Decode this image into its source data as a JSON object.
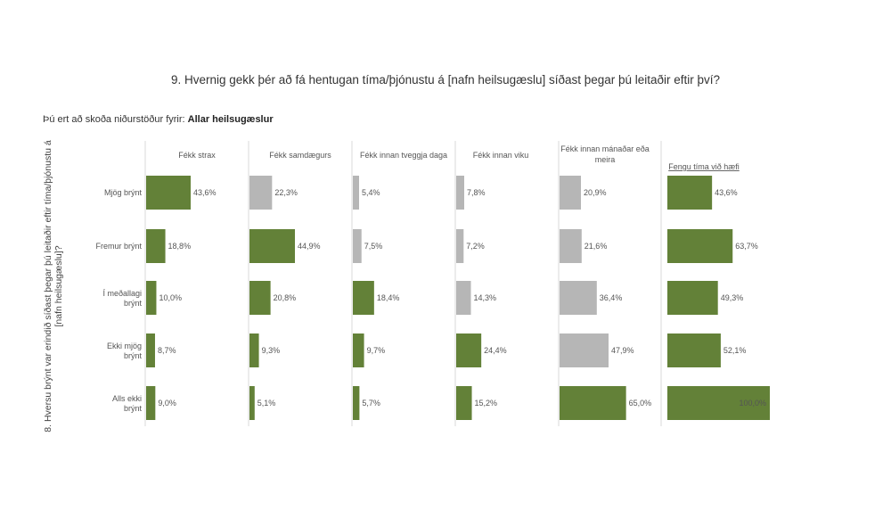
{
  "title": "9. Hvernig gekk þér að fá hentugan tíma/þjónustu á [nafn heilsugæslu] síðast þegar þú leitaðir eftir því?",
  "subtitle_prefix": "Þú ert að skoða niðurstöður fyrir:",
  "subtitle_value": "Allar heilsugæslur",
  "colors": {
    "highlight": "#638138",
    "muted": "#b6b6b6",
    "divider": "#d8d8d8",
    "text": "#555555"
  },
  "chart_data": {
    "type": "bar",
    "orientation": "horizontal",
    "ylabel": "8. Hversu brýnt var erindið síðast þegar þú leitaðir eftir tíma/þjónustu á [nafn heilsugæslu]?",
    "categories": [
      "Mjög brýnt",
      "Fremur brýnt",
      "Í meðallagi brýnt",
      "Ekki mjög brýnt",
      "Alls ekki brýnt"
    ],
    "series": [
      {
        "name": "Fékk strax",
        "values": [
          43.6,
          18.8,
          10.0,
          8.7,
          9.0
        ],
        "labels": [
          "43,6%",
          "18,8%",
          "10,0%",
          "8,7%",
          "9,0%"
        ],
        "highlighted": [
          true,
          true,
          true,
          true,
          true
        ]
      },
      {
        "name": "Fékk samdægurs",
        "values": [
          22.3,
          44.9,
          20.8,
          9.3,
          5.1
        ],
        "labels": [
          "22,3%",
          "44,9%",
          "20,8%",
          "9,3%",
          "5,1%"
        ],
        "highlighted": [
          false,
          true,
          true,
          true,
          true
        ]
      },
      {
        "name": "Fékk innan tveggja daga",
        "values": [
          5.4,
          7.5,
          18.4,
          9.7,
          5.7
        ],
        "labels": [
          "5,4%",
          "7,5%",
          "18,4%",
          "9,7%",
          "5,7%"
        ],
        "highlighted": [
          false,
          false,
          true,
          true,
          true
        ]
      },
      {
        "name": "Fékk innan viku",
        "values": [
          7.8,
          7.2,
          14.3,
          24.4,
          15.2
        ],
        "labels": [
          "7,8%",
          "7,2%",
          "14,3%",
          "24,4%",
          "15,2%"
        ],
        "highlighted": [
          false,
          false,
          false,
          true,
          true
        ]
      },
      {
        "name": "Fékk innan mánaðar eða meira",
        "values": [
          20.9,
          21.6,
          36.4,
          47.9,
          65.0
        ],
        "labels": [
          "20,9%",
          "21,6%",
          "36,4%",
          "47,9%",
          "65,0%"
        ],
        "highlighted": [
          false,
          false,
          false,
          false,
          true
        ]
      },
      {
        "name": "Fengu tíma við hæfi",
        "values": [
          43.6,
          63.7,
          49.3,
          52.1,
          100.0
        ],
        "labels": [
          "43,6%",
          "63,7%",
          "49,3%",
          "52,1%",
          "100,0%"
        ],
        "highlighted": [
          true,
          true,
          true,
          true,
          true
        ],
        "underlined": true
      }
    ],
    "xlim": [
      0,
      100
    ]
  }
}
